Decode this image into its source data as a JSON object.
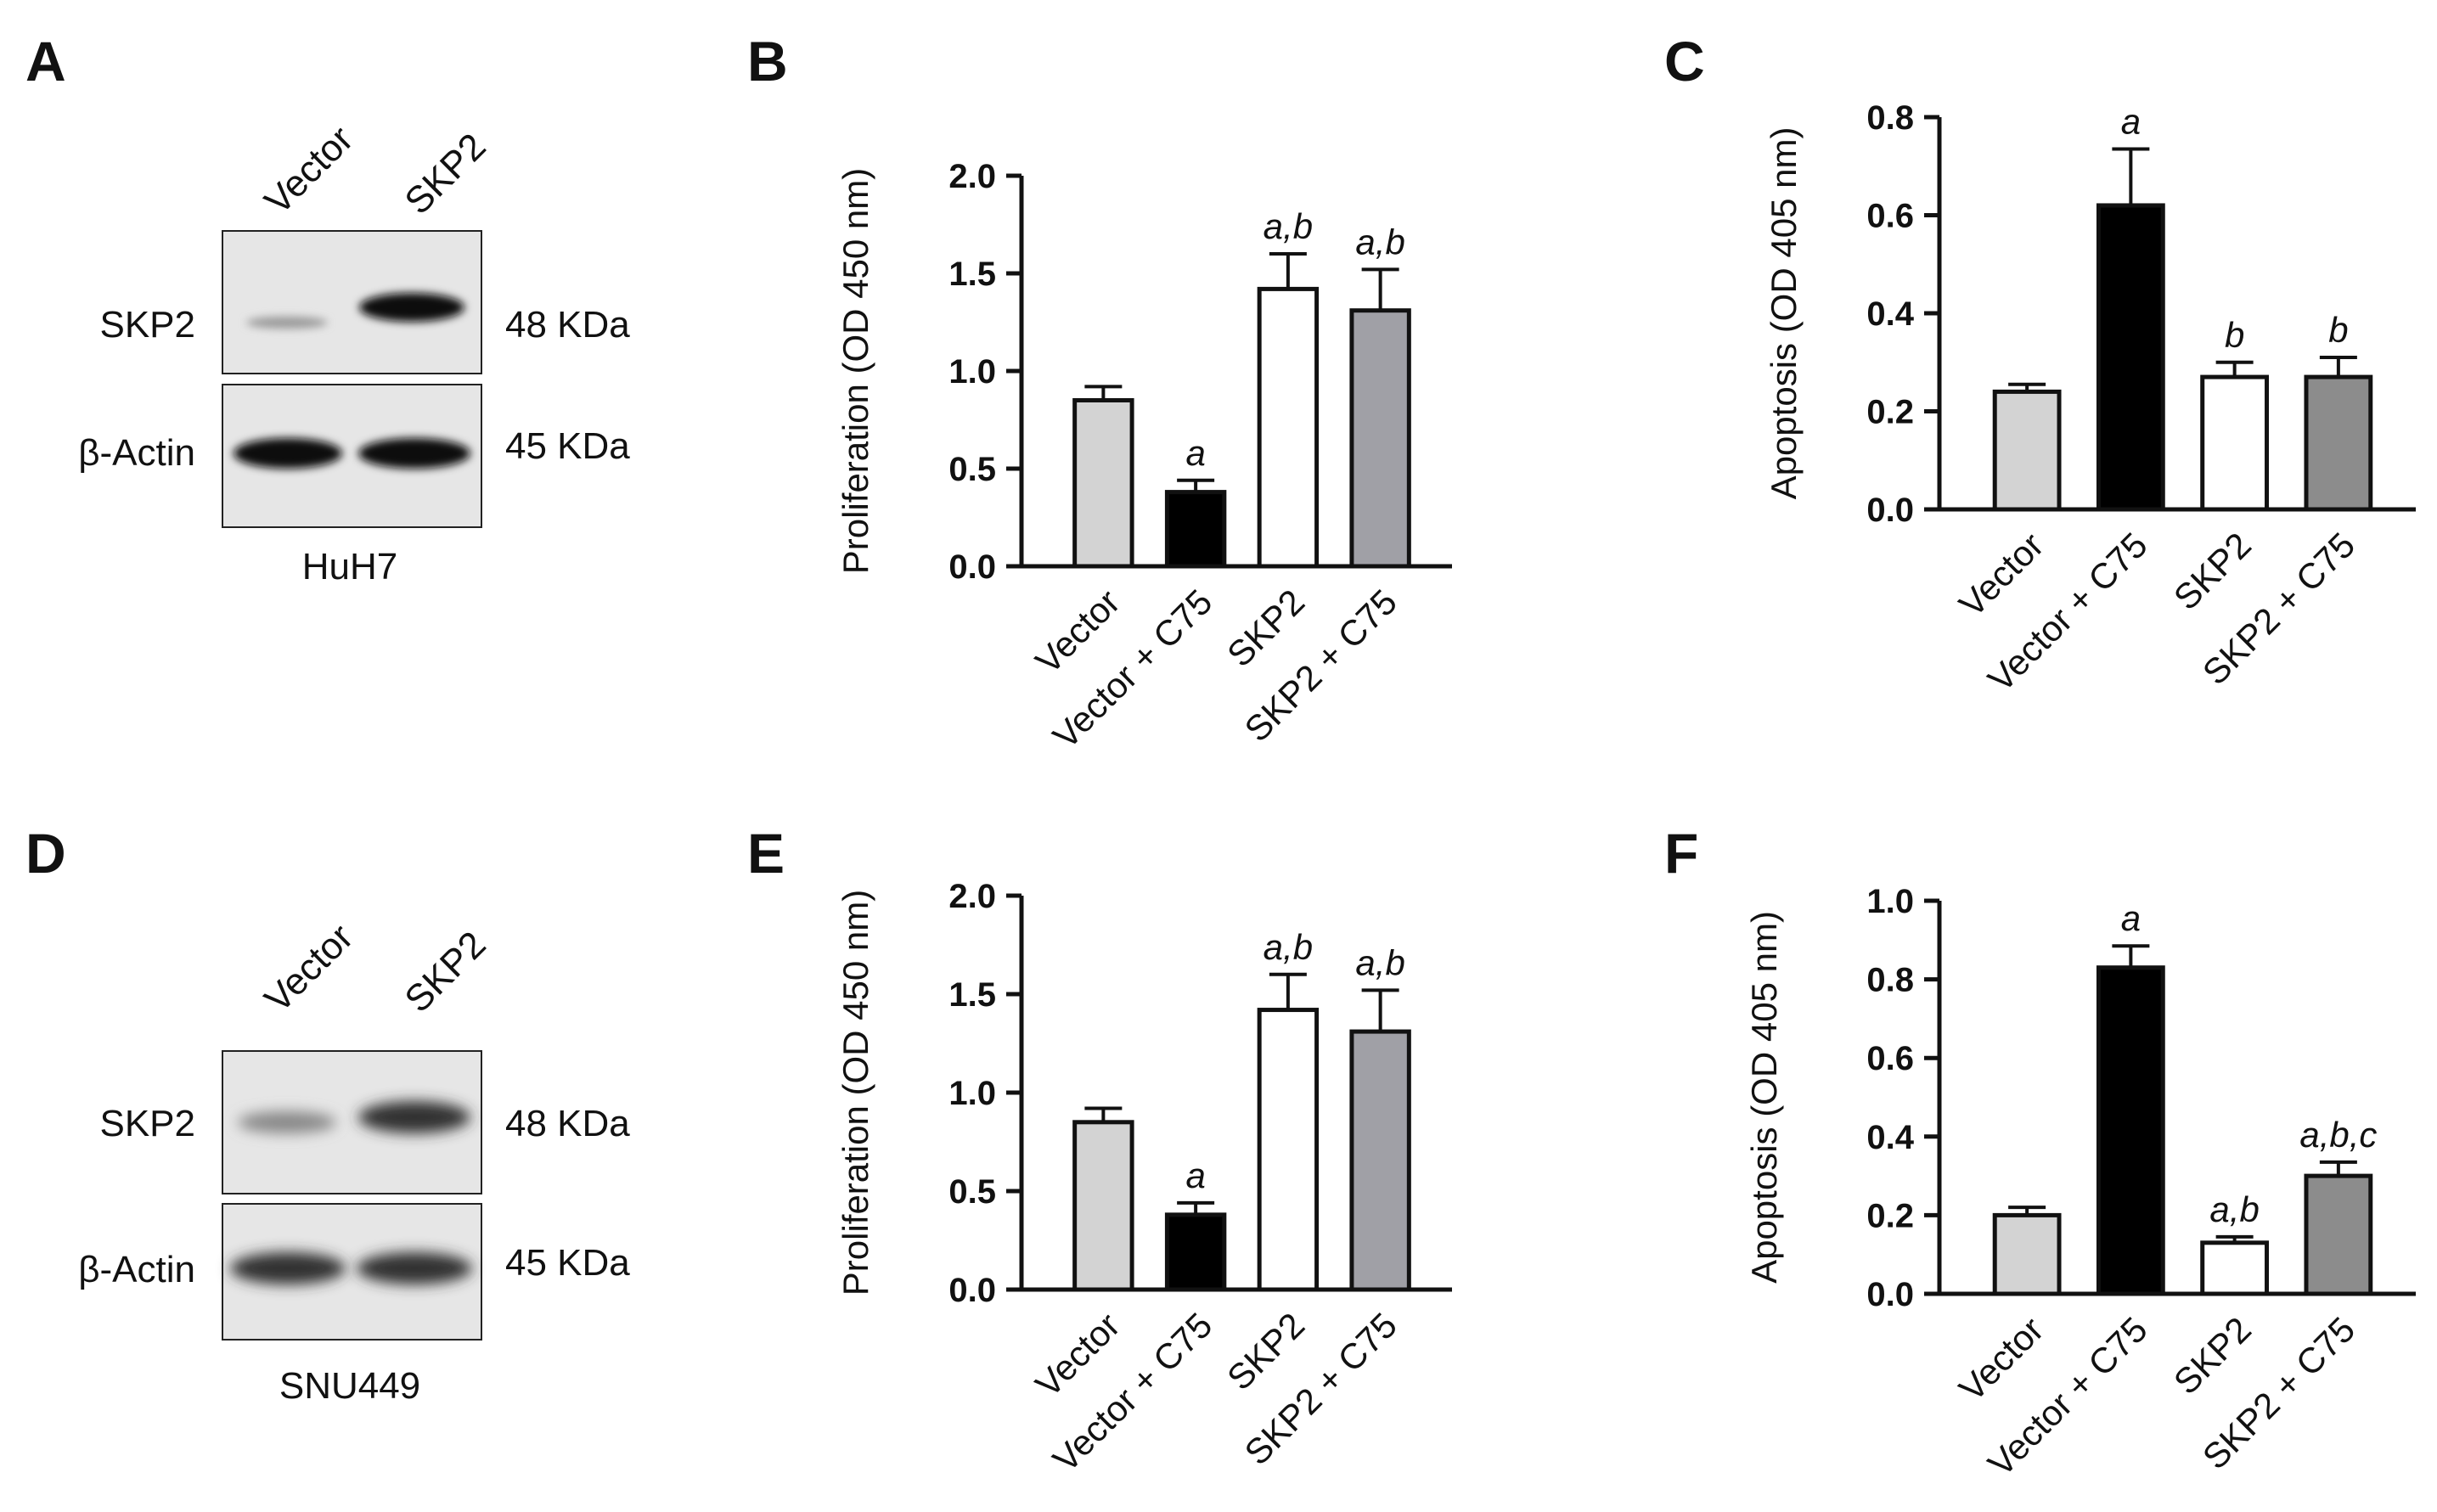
{
  "panels": [
    {
      "letter": "A",
      "type": "western_blot",
      "lanes": [
        "Vector",
        "SKP2"
      ],
      "rows": [
        {
          "protein": "SKP2",
          "mw": "48 KDa"
        },
        {
          "protein": "β-Actin",
          "mw": "45 KDa"
        }
      ],
      "cell_line": "HuH7"
    },
    {
      "letter": "D",
      "type": "western_blot",
      "lanes": [
        "Vector",
        "SKP2"
      ],
      "rows": [
        {
          "protein": "SKP2",
          "mw": "48 KDa"
        },
        {
          "protein": "β-Actin",
          "mw": "45 KDa"
        }
      ],
      "cell_line": "SNU449"
    }
  ],
  "chart_data": [
    {
      "panel": "B",
      "type": "bar",
      "categories": [
        "Vector",
        "Vector + C75",
        "SKP2",
        "SKP2 + C75"
      ],
      "values": [
        0.85,
        0.38,
        1.42,
        1.31
      ],
      "errors": [
        0.07,
        0.06,
        0.18,
        0.21
      ],
      "significance": [
        "",
        "a",
        "a,b",
        "a,b"
      ],
      "ylabel": "Proliferation (OD 450 nm)",
      "ylim": [
        0,
        2.0
      ],
      "yticks": [
        "0.0",
        "0.5",
        "1.0",
        "1.5",
        "2.0"
      ],
      "bar_colors": [
        "#d3d3d3",
        "#000000",
        "#ffffff",
        "#a0a0a6"
      ]
    },
    {
      "panel": "C",
      "type": "bar",
      "categories": [
        "Vector",
        "Vector + C75",
        "SKP2",
        "SKP2 + C75"
      ],
      "values": [
        0.24,
        0.62,
        0.27,
        0.27
      ],
      "errors": [
        0.015,
        0.115,
        0.03,
        0.04
      ],
      "significance": [
        "",
        "a",
        "b",
        "b"
      ],
      "ylabel": "Apoptosis (OD 405 nm)",
      "ylim": [
        0,
        0.8
      ],
      "yticks": [
        "0.0",
        "0.2",
        "0.4",
        "0.6",
        "0.8"
      ],
      "bar_colors": [
        "#d3d3d3",
        "#000000",
        "#ffffff",
        "#8c8c8c"
      ]
    },
    {
      "panel": "E",
      "type": "bar",
      "categories": [
        "Vector",
        "Vector + C75",
        "SKP2",
        "SKP2 + C75"
      ],
      "values": [
        0.85,
        0.38,
        1.42,
        1.31
      ],
      "errors": [
        0.07,
        0.06,
        0.18,
        0.21
      ],
      "significance": [
        "",
        "a",
        "a,b",
        "a,b"
      ],
      "ylabel": "Proliferation (OD 450 nm)",
      "ylim": [
        0,
        2.0
      ],
      "yticks": [
        "0.0",
        "0.5",
        "1.0",
        "1.5",
        "2.0"
      ],
      "bar_colors": [
        "#d3d3d3",
        "#000000",
        "#ffffff",
        "#a0a0a6"
      ]
    },
    {
      "panel": "F",
      "type": "bar",
      "categories": [
        "Vector",
        "Vector + C75",
        "SKP2",
        "SKP2 + C75"
      ],
      "values": [
        0.2,
        0.83,
        0.13,
        0.3
      ],
      "errors": [
        0.02,
        0.055,
        0.015,
        0.035
      ],
      "significance": [
        "",
        "a",
        "a,b",
        "a,b,c"
      ],
      "ylabel": "Apoptosis (OD 405 nm)",
      "ylim": [
        0,
        1.0
      ],
      "yticks": [
        "0.0",
        "0.2",
        "0.4",
        "0.6",
        "0.8",
        "1.0"
      ],
      "bar_colors": [
        "#d3d3d3",
        "#000000",
        "#ffffff",
        "#8c8c8c"
      ]
    }
  ]
}
